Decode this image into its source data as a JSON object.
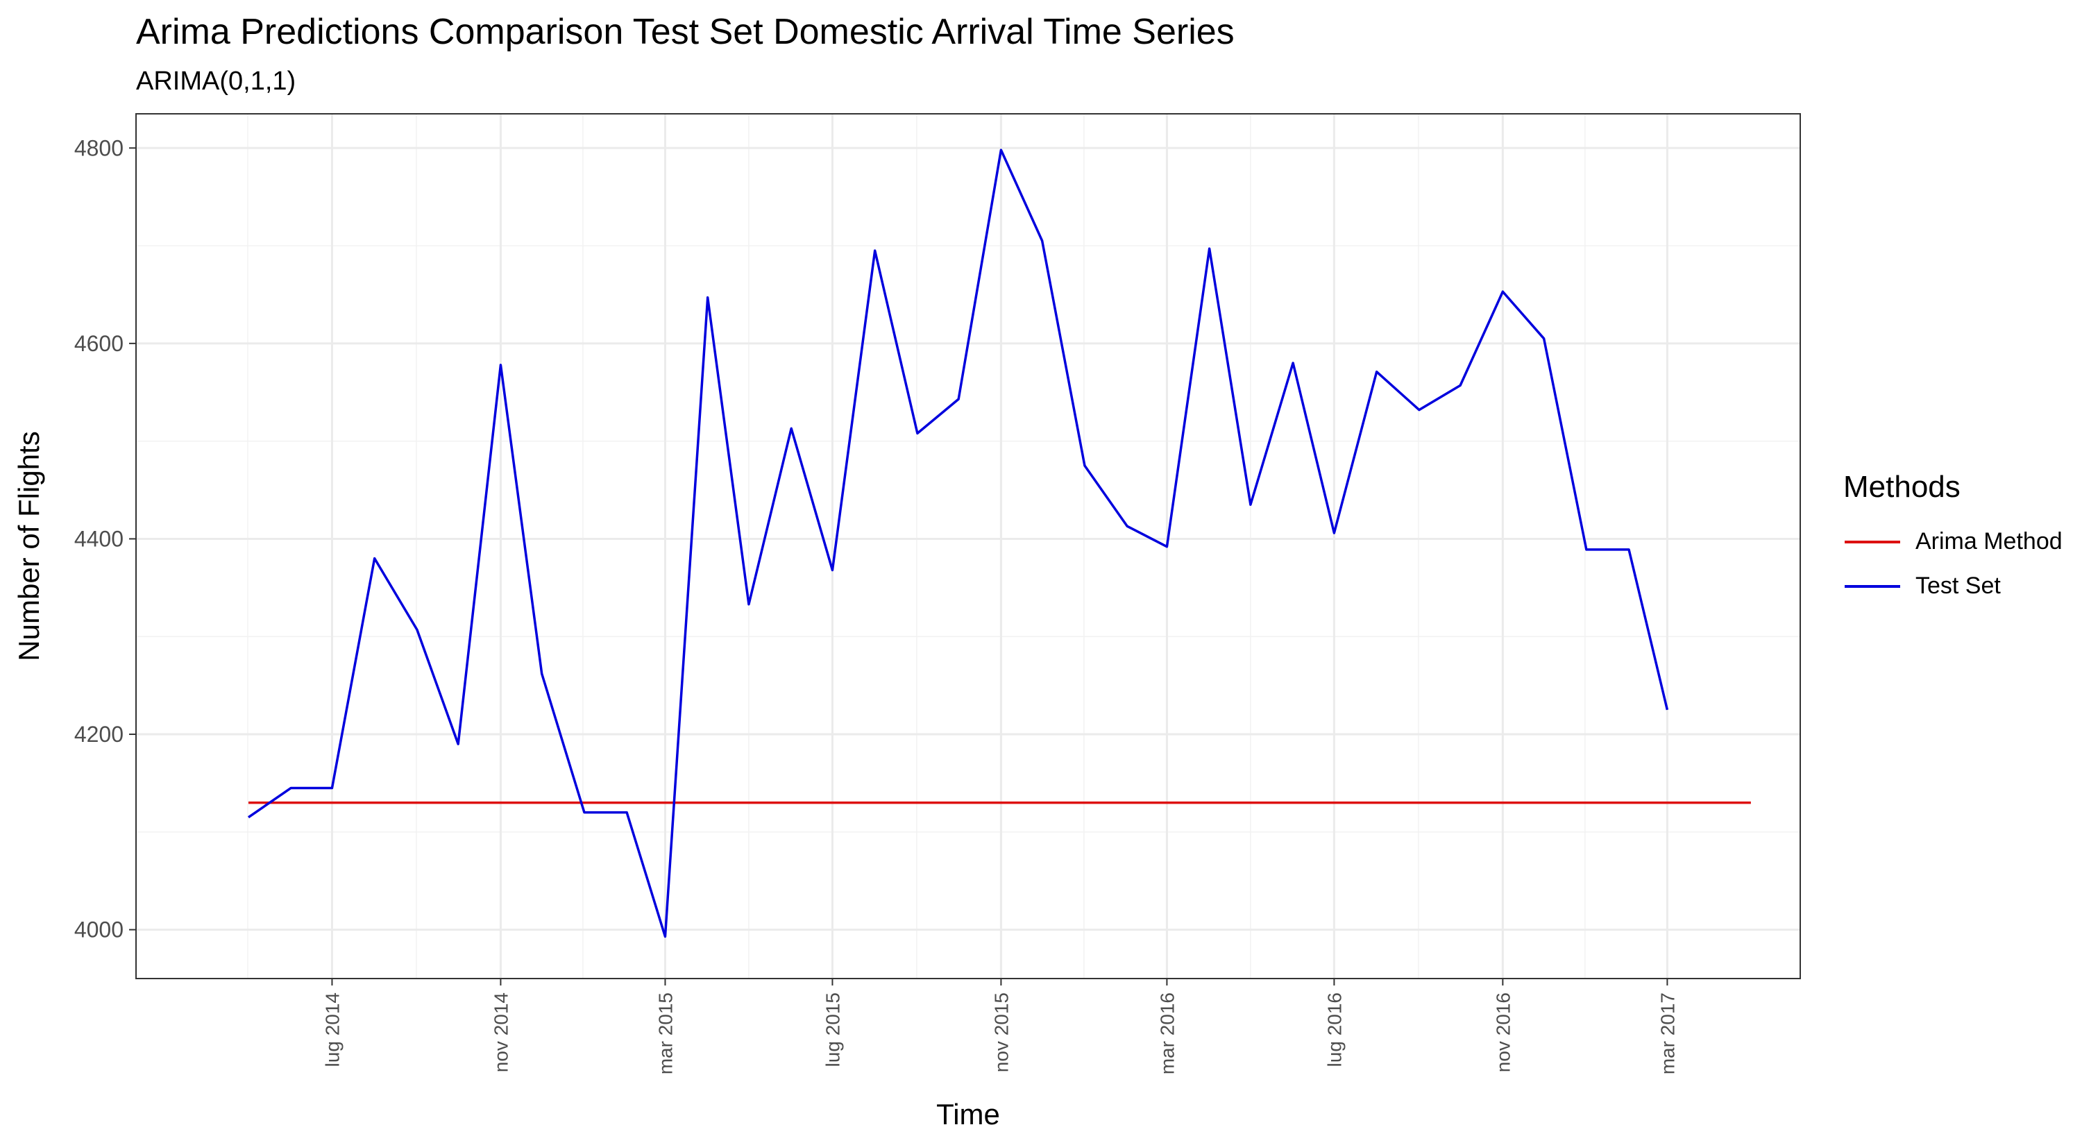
{
  "chart_data": {
    "type": "line",
    "title": "Arima Predictions Comparison Test Set Domestic Arrival Time Series",
    "subtitle": "ARIMA(0,1,1)",
    "xlabel": "Time",
    "ylabel": "Number of Flights",
    "ylim": [
      3950,
      4835
    ],
    "yticks": [
      4000,
      4200,
      4400,
      4600,
      4800
    ],
    "xlim": [
      "2014-02-08",
      "2017-06-06"
    ],
    "xticks": [
      {
        "label": "lug 2014",
        "date": "2014-07-01"
      },
      {
        "label": "nov 2014",
        "date": "2014-11-01"
      },
      {
        "label": "mar 2015",
        "date": "2015-03-01"
      },
      {
        "label": "lug 2015",
        "date": "2015-07-01"
      },
      {
        "label": "nov 2015",
        "date": "2015-11-01"
      },
      {
        "label": "mar 2016",
        "date": "2016-03-01"
      },
      {
        "label": "lug 2016",
        "date": "2016-07-01"
      },
      {
        "label": "nov 2016",
        "date": "2016-11-01"
      },
      {
        "label": "mar 2017",
        "date": "2017-03-01"
      }
    ],
    "grid": true,
    "legend": {
      "title": "Methods",
      "position": "right"
    },
    "series": [
      {
        "name": "Arima Method",
        "color": "#dd1111",
        "x": [
          "2014-05-01",
          "2017-05-01"
        ],
        "y": [
          4130,
          4130
        ]
      },
      {
        "name": "Test Set",
        "color": "#0000dd",
        "x": [
          "2014-05-01",
          "2014-06-01",
          "2014-07-01",
          "2014-08-01",
          "2014-09-01",
          "2014-10-01",
          "2014-11-01",
          "2014-12-01",
          "2015-01-01",
          "2015-02-01",
          "2015-03-01",
          "2015-04-01",
          "2015-05-01",
          "2015-06-01",
          "2015-07-01",
          "2015-08-01",
          "2015-09-01",
          "2015-10-01",
          "2015-11-01",
          "2015-12-01",
          "2016-01-01",
          "2016-02-01",
          "2016-03-01",
          "2016-04-01",
          "2016-05-01",
          "2016-06-01",
          "2016-07-01",
          "2016-08-01",
          "2016-09-01",
          "2016-10-01",
          "2016-11-01",
          "2016-12-01",
          "2017-01-01",
          "2017-02-01",
          "2017-03-01"
        ],
        "y": [
          4115,
          4145,
          4145,
          4380,
          4307,
          4190,
          4578,
          4262,
          4120,
          4120,
          3993,
          4647,
          4333,
          4513,
          4368,
          4695,
          4508,
          4543,
          4798,
          4705,
          4475,
          4413,
          4392,
          4697,
          4435,
          4580,
          4406,
          4571,
          4532,
          4557,
          4653,
          4605,
          4389,
          4389,
          4225
        ]
      }
    ]
  }
}
